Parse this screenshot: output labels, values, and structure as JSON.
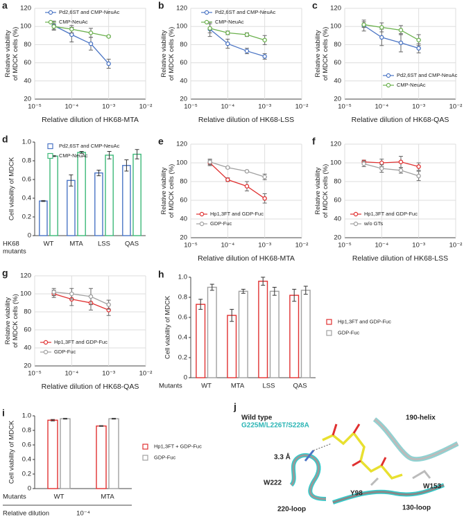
{
  "chart_data": [
    {
      "panel": "a",
      "type": "line",
      "xscale": "log",
      "x": [
        3.3e-05,
        0.0001,
        0.00033,
        0.001
      ],
      "xlim": [
        1e-05,
        0.01
      ],
      "xticks": [
        {
          "value": 1e-05,
          "label": "10⁻⁵"
        },
        {
          "value": 0.0001,
          "label": "10⁻⁴"
        },
        {
          "value": 0.001,
          "label": "10⁻³"
        },
        {
          "value": 0.01,
          "label": "10⁻²"
        }
      ],
      "ylim": [
        20,
        120
      ],
      "yticks": [
        20,
        40,
        60,
        80,
        100,
        120
      ],
      "grid": true,
      "legend": "upper-left",
      "x_label": "Relative dilution of HK68-MTA",
      "y_label": [
        "Relative viability",
        "of MDCK cells (%)"
      ],
      "series": [
        {
          "name": "Pd2,6ST and CMP-NeuAc",
          "color": "#4a74c4",
          "values": [
            101,
            91,
            81,
            59
          ],
          "errors": [
            5,
            8,
            7,
            5
          ]
        },
        {
          "name": "CMP-NeuAc",
          "color": "#6ab04c",
          "values": [
            100,
            97,
            93,
            89
          ],
          "errors": [
            3,
            4,
            5,
            1
          ]
        }
      ]
    },
    {
      "panel": "b",
      "type": "line",
      "xscale": "log",
      "x": [
        3.3e-05,
        0.0001,
        0.00033,
        0.001
      ],
      "xlim": [
        1e-05,
        0.01
      ],
      "xticks": [
        {
          "value": 1e-05,
          "label": "10⁻⁵"
        },
        {
          "value": 0.0001,
          "label": "10⁻⁴"
        },
        {
          "value": 0.001,
          "label": "10⁻³"
        },
        {
          "value": 0.01,
          "label": "10⁻²"
        }
      ],
      "ylim": [
        20,
        120
      ],
      "yticks": [
        20,
        40,
        60,
        80,
        100,
        120
      ],
      "grid": true,
      "legend": "upper-left",
      "x_label": "Relative dilution of HK68-LSS",
      "y_label": [
        "Relative viability",
        "of MDCK cells (%)"
      ],
      "series": [
        {
          "name": "Pd2,6ST and CMP-NeuAc",
          "color": "#4a74c4",
          "values": [
            97,
            81,
            73,
            67
          ],
          "errors": [
            8,
            5,
            3,
            3
          ]
        },
        {
          "name": "CMP-NeuAc",
          "color": "#6ab04c",
          "values": [
            98,
            93,
            91,
            85
          ],
          "errors": [
            5,
            2,
            2,
            5
          ]
        }
      ]
    },
    {
      "panel": "c",
      "type": "line",
      "xscale": "log",
      "x": [
        3.3e-05,
        0.0001,
        0.00033,
        0.001
      ],
      "xlim": [
        1e-05,
        0.01
      ],
      "xticks": [
        {
          "value": 1e-05,
          "label": "10⁻⁵"
        },
        {
          "value": 0.0001,
          "label": "10⁻⁴"
        },
        {
          "value": 0.001,
          "label": "10⁻³"
        },
        {
          "value": 0.01,
          "label": "10⁻²"
        }
      ],
      "ylim": [
        20,
        120
      ],
      "yticks": [
        20,
        40,
        60,
        80,
        100,
        120
      ],
      "grid": true,
      "legend": "lower-right",
      "x_label": "Relative dilution of HK68-QAS",
      "y_label": [
        "Relative viability",
        "of MDCK cells (%)"
      ],
      "series": [
        {
          "name": "Pd2,6ST and CMP-NeuAc",
          "color": "#4a74c4",
          "values": [
            101,
            88,
            82,
            76
          ],
          "errors": [
            6,
            9,
            10,
            5
          ]
        },
        {
          "name": "CMP-NeuAc",
          "color": "#6ab04c",
          "values": [
            102,
            99,
            96,
            85
          ],
          "errors": [
            3,
            5,
            5,
            6
          ]
        }
      ]
    },
    {
      "panel": "d",
      "type": "bar",
      "categories": [
        "WT",
        "MTA",
        "LSS",
        "QAS"
      ],
      "ylim": [
        0,
        1
      ],
      "yticks": [
        0,
        0.2,
        0.4,
        0.6,
        0.8,
        {
          "value": 1,
          "label": "1.0"
        }
      ],
      "legend": "upper-left",
      "x_label": [
        "HK68",
        "mutants"
      ],
      "y_label": [
        "Cell viability of MDCK"
      ],
      "series": [
        {
          "name": "Pd2,6ST and CMP-NeuAc",
          "color": "#4a74c4",
          "values": [
            0.37,
            0.59,
            0.67,
            0.75
          ],
          "errors": [
            0.005,
            0.06,
            0.03,
            0.06
          ]
        },
        {
          "name": "CMP-NeuAc",
          "color": "#3cb878",
          "values": [
            0.85,
            0.89,
            0.86,
            0.87
          ],
          "errors": [
            0.005,
            0.01,
            0.04,
            0.05
          ]
        }
      ]
    },
    {
      "panel": "e",
      "type": "line",
      "xscale": "log",
      "x": [
        3.3e-05,
        0.0001,
        0.00033,
        0.001
      ],
      "xlim": [
        1e-05,
        0.01
      ],
      "xticks": [
        {
          "value": 1e-05,
          "label": "10⁻⁵"
        },
        {
          "value": 0.0001,
          "label": "10⁻⁴"
        },
        {
          "value": 0.001,
          "label": "10⁻³"
        },
        {
          "value": 0.01,
          "label": "10⁻²"
        }
      ],
      "ylim": [
        20,
        120
      ],
      "yticks": [
        20,
        40,
        60,
        80,
        100,
        120
      ],
      "grid": true,
      "legend": "lower-left",
      "x_label": "Relative dilution of HK68-MTA",
      "y_label": [
        "Relative viability",
        "of MDCK cells (%)"
      ],
      "series": [
        {
          "name": "Hp1,3FT and GDP-Fuc",
          "color": "#e03030",
          "values": [
            100,
            82,
            75,
            62
          ],
          "errors": [
            3,
            2,
            5,
            5
          ]
        },
        {
          "name": "GDP-Fuc",
          "color": "#a0a0a0",
          "values": [
            101,
            95,
            91,
            85
          ],
          "errors": [
            3,
            1,
            1,
            3
          ]
        }
      ]
    },
    {
      "panel": "f",
      "type": "line",
      "xscale": "log",
      "x": [
        3.3e-05,
        0.0001,
        0.00033,
        0.001
      ],
      "xlim": [
        1e-05,
        0.01
      ],
      "xticks": [
        {
          "value": 1e-05,
          "label": "10⁻⁵"
        },
        {
          "value": 0.0001,
          "label": "10⁻⁴"
        },
        {
          "value": 0.001,
          "label": "10⁻³"
        },
        {
          "value": 0.01,
          "label": "10⁻²"
        }
      ],
      "ylim": [
        20,
        120
      ],
      "yticks": [
        20,
        40,
        60,
        80,
        100,
        120
      ],
      "grid": true,
      "legend": "lower-left",
      "x_label": "Relative dilution of HK68-LSS",
      "y_label": [
        "Relative viability",
        "of MDCK cells (%)"
      ],
      "series": [
        {
          "name": "Hp1,3FT and GDP-Fuc",
          "color": "#e03030",
          "values": [
            101,
            100,
            101,
            96
          ],
          "errors": [
            2,
            4,
            6,
            4
          ]
        },
        {
          "name": "w/o GTs",
          "color": "#a0a0a0",
          "values": [
            99,
            94,
            92,
            86
          ],
          "errors": [
            3,
            4,
            3,
            5
          ]
        }
      ]
    },
    {
      "panel": "g",
      "type": "line",
      "xscale": "log",
      "x": [
        3.3e-05,
        0.0001,
        0.00033,
        0.001
      ],
      "xlim": [
        1e-05,
        0.01
      ],
      "xticks": [
        {
          "value": 1e-05,
          "label": "10⁻⁵"
        },
        {
          "value": 0.0001,
          "label": "10⁻⁴"
        },
        {
          "value": 0.001,
          "label": "10⁻³"
        },
        {
          "value": 0.01,
          "label": "10⁻²"
        }
      ],
      "ylim": [
        20,
        120
      ],
      "yticks": [
        20,
        40,
        60,
        80,
        100,
        120
      ],
      "grid": true,
      "legend": "lower-left",
      "x_label": "Relative dilution of HK68-QAS",
      "y_label": [
        "Relative viability",
        "of MDCK cells (%)"
      ],
      "series": [
        {
          "name": "Hp1,3FT and GDP-Fuc",
          "color": "#e03030",
          "values": [
            100,
            94,
            90,
            82
          ],
          "errors": [
            4,
            7,
            8,
            6
          ]
        },
        {
          "name": "GDP-Fuc",
          "color": "#a0a0a0",
          "values": [
            102,
            100,
            97,
            88
          ],
          "errors": [
            4,
            6,
            9,
            5
          ]
        }
      ]
    },
    {
      "panel": "h",
      "type": "bar",
      "categories": [
        "WT",
        "MTA",
        "LSS",
        "QAS"
      ],
      "ylim": [
        0,
        1
      ],
      "yticks": [
        0,
        0.2,
        0.4,
        0.6,
        0.8,
        {
          "value": 1,
          "label": "1.0"
        }
      ],
      "legend": "right",
      "x_label": [
        "Mutants"
      ],
      "y_label": [
        "Cell viability of MDCK"
      ],
      "series": [
        {
          "name": "Hp1,3FT and GDP-Fuc",
          "color": "#e03030",
          "values": [
            0.73,
            0.62,
            0.96,
            0.82
          ],
          "errors": [
            0.05,
            0.06,
            0.04,
            0.06
          ]
        },
        {
          "name": "GDP-Fuc",
          "color": "#a0a0a0",
          "values": [
            0.9,
            0.86,
            0.86,
            0.87
          ],
          "errors": [
            0.03,
            0.02,
            0.04,
            0.04
          ]
        }
      ]
    },
    {
      "panel": "i",
      "type": "bar",
      "categories": [
        "WT",
        "MTA"
      ],
      "ylim": [
        0,
        1
      ],
      "yticks": [
        0,
        0.2,
        0.4,
        0.6,
        0.8,
        {
          "value": 1,
          "label": "1.0"
        }
      ],
      "legend": "right",
      "x_label": [
        "Mutants"
      ],
      "y_label": [
        "Cell viability of MDCK"
      ],
      "annotations": [
        "Relative dilution",
        "10⁻⁴"
      ],
      "series": [
        {
          "name": "Hp1,3FT + GDP-Fuc",
          "color": "#e03030",
          "values": [
            0.94,
            0.86
          ],
          "errors": [
            0.01,
            0.005
          ]
        },
        {
          "name": "GDP-Fuc",
          "color": "#a0a0a0",
          "values": [
            0.96,
            0.96
          ],
          "errors": [
            0.005,
            0.005
          ]
        }
      ]
    }
  ],
  "structure": {
    "panel": "j",
    "labels": [
      "Wild type",
      "G225M/L226T/S228A",
      "190-helix",
      "3.3 Å",
      "W222",
      "Y98",
      "W153",
      "220-loop",
      "130-loop"
    ]
  }
}
